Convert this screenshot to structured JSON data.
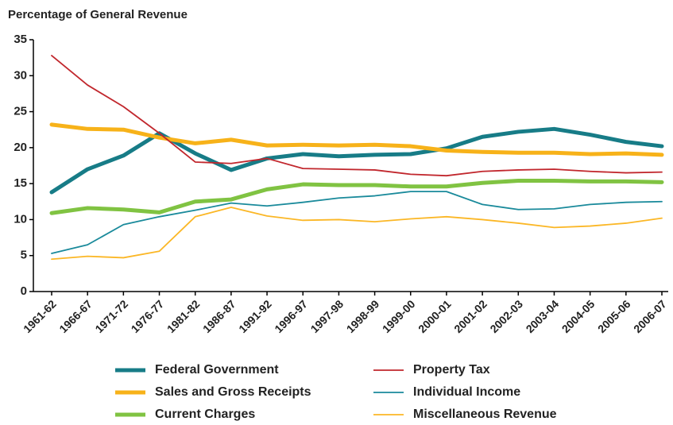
{
  "chart_data": {
    "type": "line",
    "title": "Percentage of General Revenue",
    "categories": [
      "1961-62",
      "1966-67",
      "1971-72",
      "1976-77",
      "1981-82",
      "1986-87",
      "1991-92",
      "1996-97",
      "1997-98",
      "1998-99",
      "1999-00",
      "2000-01",
      "2001-02",
      "2002-03",
      "2003-04",
      "2004-05",
      "2005-06",
      "2006-07"
    ],
    "series": [
      {
        "name": "Federal Government",
        "color": "#177c87",
        "line_width": 5,
        "values": [
          13.8,
          17.0,
          18.9,
          22.0,
          19.2,
          16.9,
          18.5,
          19.1,
          18.8,
          19.0,
          19.1,
          19.9,
          21.5,
          22.2,
          22.6,
          21.8,
          20.8,
          20.2
        ]
      },
      {
        "name": "Sales and Gross Receipts",
        "color": "#f7b219",
        "line_width": 5,
        "values": [
          23.2,
          22.6,
          22.5,
          21.4,
          20.6,
          21.1,
          20.3,
          20.4,
          20.3,
          20.4,
          20.2,
          19.6,
          19.4,
          19.3,
          19.3,
          19.1,
          19.2,
          19.0
        ]
      },
      {
        "name": "Current Charges",
        "color": "#80c342",
        "line_width": 5,
        "values": [
          10.9,
          11.6,
          11.4,
          11.0,
          12.5,
          12.8,
          14.2,
          14.9,
          14.8,
          14.8,
          14.6,
          14.6,
          15.1,
          15.4,
          15.4,
          15.3,
          15.3,
          15.2
        ]
      },
      {
        "name": "Property Tax",
        "color": "#c1272d",
        "line_width": 1.8,
        "values": [
          32.8,
          28.7,
          25.7,
          22.0,
          18.0,
          17.8,
          18.5,
          17.1,
          17.0,
          16.9,
          16.3,
          16.1,
          16.7,
          16.9,
          17.0,
          16.7,
          16.5,
          16.6
        ]
      },
      {
        "name": "Individual Income",
        "color": "#1a8a9b",
        "line_width": 1.8,
        "values": [
          5.3,
          6.5,
          9.3,
          10.4,
          11.3,
          12.3,
          11.9,
          12.4,
          13.0,
          13.3,
          13.9,
          13.9,
          12.1,
          11.4,
          11.5,
          12.1,
          12.4,
          12.5
        ]
      },
      {
        "name": "Miscellaneous Revenue",
        "color": "#fbb726",
        "line_width": 1.8,
        "values": [
          4.5,
          4.9,
          4.7,
          5.6,
          10.4,
          11.7,
          10.5,
          9.9,
          10.0,
          9.7,
          10.1,
          10.4,
          10.0,
          9.5,
          8.9,
          9.1,
          9.5,
          10.2
        ]
      }
    ],
    "ylim": [
      0,
      35
    ],
    "yticks": [
      0,
      5,
      10,
      15,
      20,
      25,
      30,
      35
    ]
  }
}
